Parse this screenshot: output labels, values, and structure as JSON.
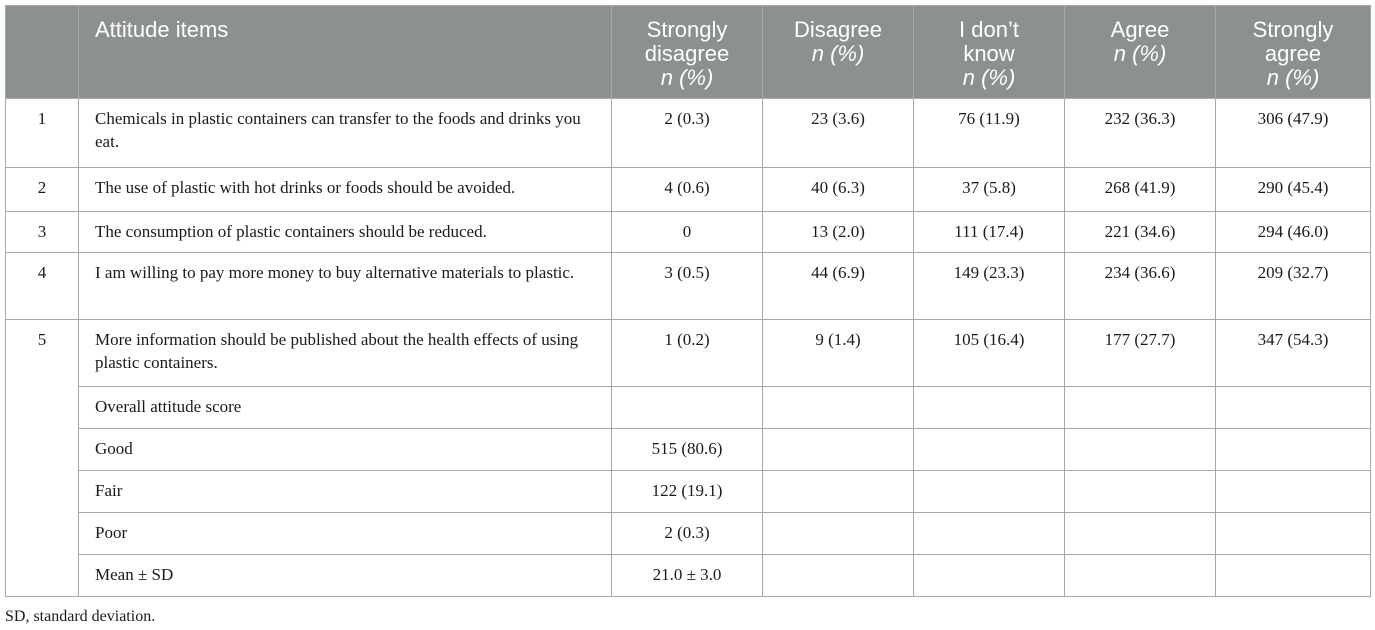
{
  "header": {
    "item_col": "Attitude items",
    "cols": [
      {
        "line1": "Strongly",
        "line2": "disagree",
        "unit": "n (%)"
      },
      {
        "line1": "Disagree",
        "line2": "",
        "unit": "n (%)"
      },
      {
        "line1": "I don’t",
        "line2": "know",
        "unit": "n (%)"
      },
      {
        "line1": "Agree",
        "line2": "",
        "unit": "n (%)"
      },
      {
        "line1": "Strongly",
        "line2": "agree",
        "unit": "n (%)"
      }
    ]
  },
  "rows": [
    {
      "num": "1",
      "item": "Chemicals in plastic containers can transfer to the foods and drinks you eat.",
      "values": [
        "2 (0.3)",
        "23 (3.6)",
        "76 (11.9)",
        "232 (36.3)",
        "306 (47.9)"
      ]
    },
    {
      "num": "2",
      "item": "The use of plastic with hot drinks or foods should be avoided.",
      "values": [
        "4 (0.6)",
        "40 (6.3)",
        "37 (5.8)",
        "268 (41.9)",
        "290 (45.4)"
      ]
    },
    {
      "num": "3",
      "item": "The consumption of plastic containers should be reduced.",
      "values": [
        "0",
        "13 (2.0)",
        "111 (17.4)",
        "221 (34.6)",
        "294 (46.0)"
      ]
    },
    {
      "num": "4",
      "item": "I am willing to pay more money to buy alternative materials to plastic.",
      "values": [
        "3 (0.5)",
        "44 (6.9)",
        "149 (23.3)",
        "234 (36.6)",
        "209 (32.7)"
      ]
    },
    {
      "num": "5",
      "item": "More information should be published about the health effects of using plastic containers.",
      "values": [
        "1 (0.2)",
        "9 (1.4)",
        "105 (16.4)",
        "177 (27.7)",
        "347 (54.3)"
      ]
    }
  ],
  "summary": [
    {
      "label": "Overall attitude score",
      "value": ""
    },
    {
      "label": "Good",
      "value": "515 (80.6)"
    },
    {
      "label": "Fair",
      "value": "122 (19.1)"
    },
    {
      "label": "Poor",
      "value": "2 (0.3)"
    },
    {
      "label": "Mean ± SD",
      "value": "21.0 ± 3.0"
    }
  ],
  "footnote": "SD, standard deviation."
}
